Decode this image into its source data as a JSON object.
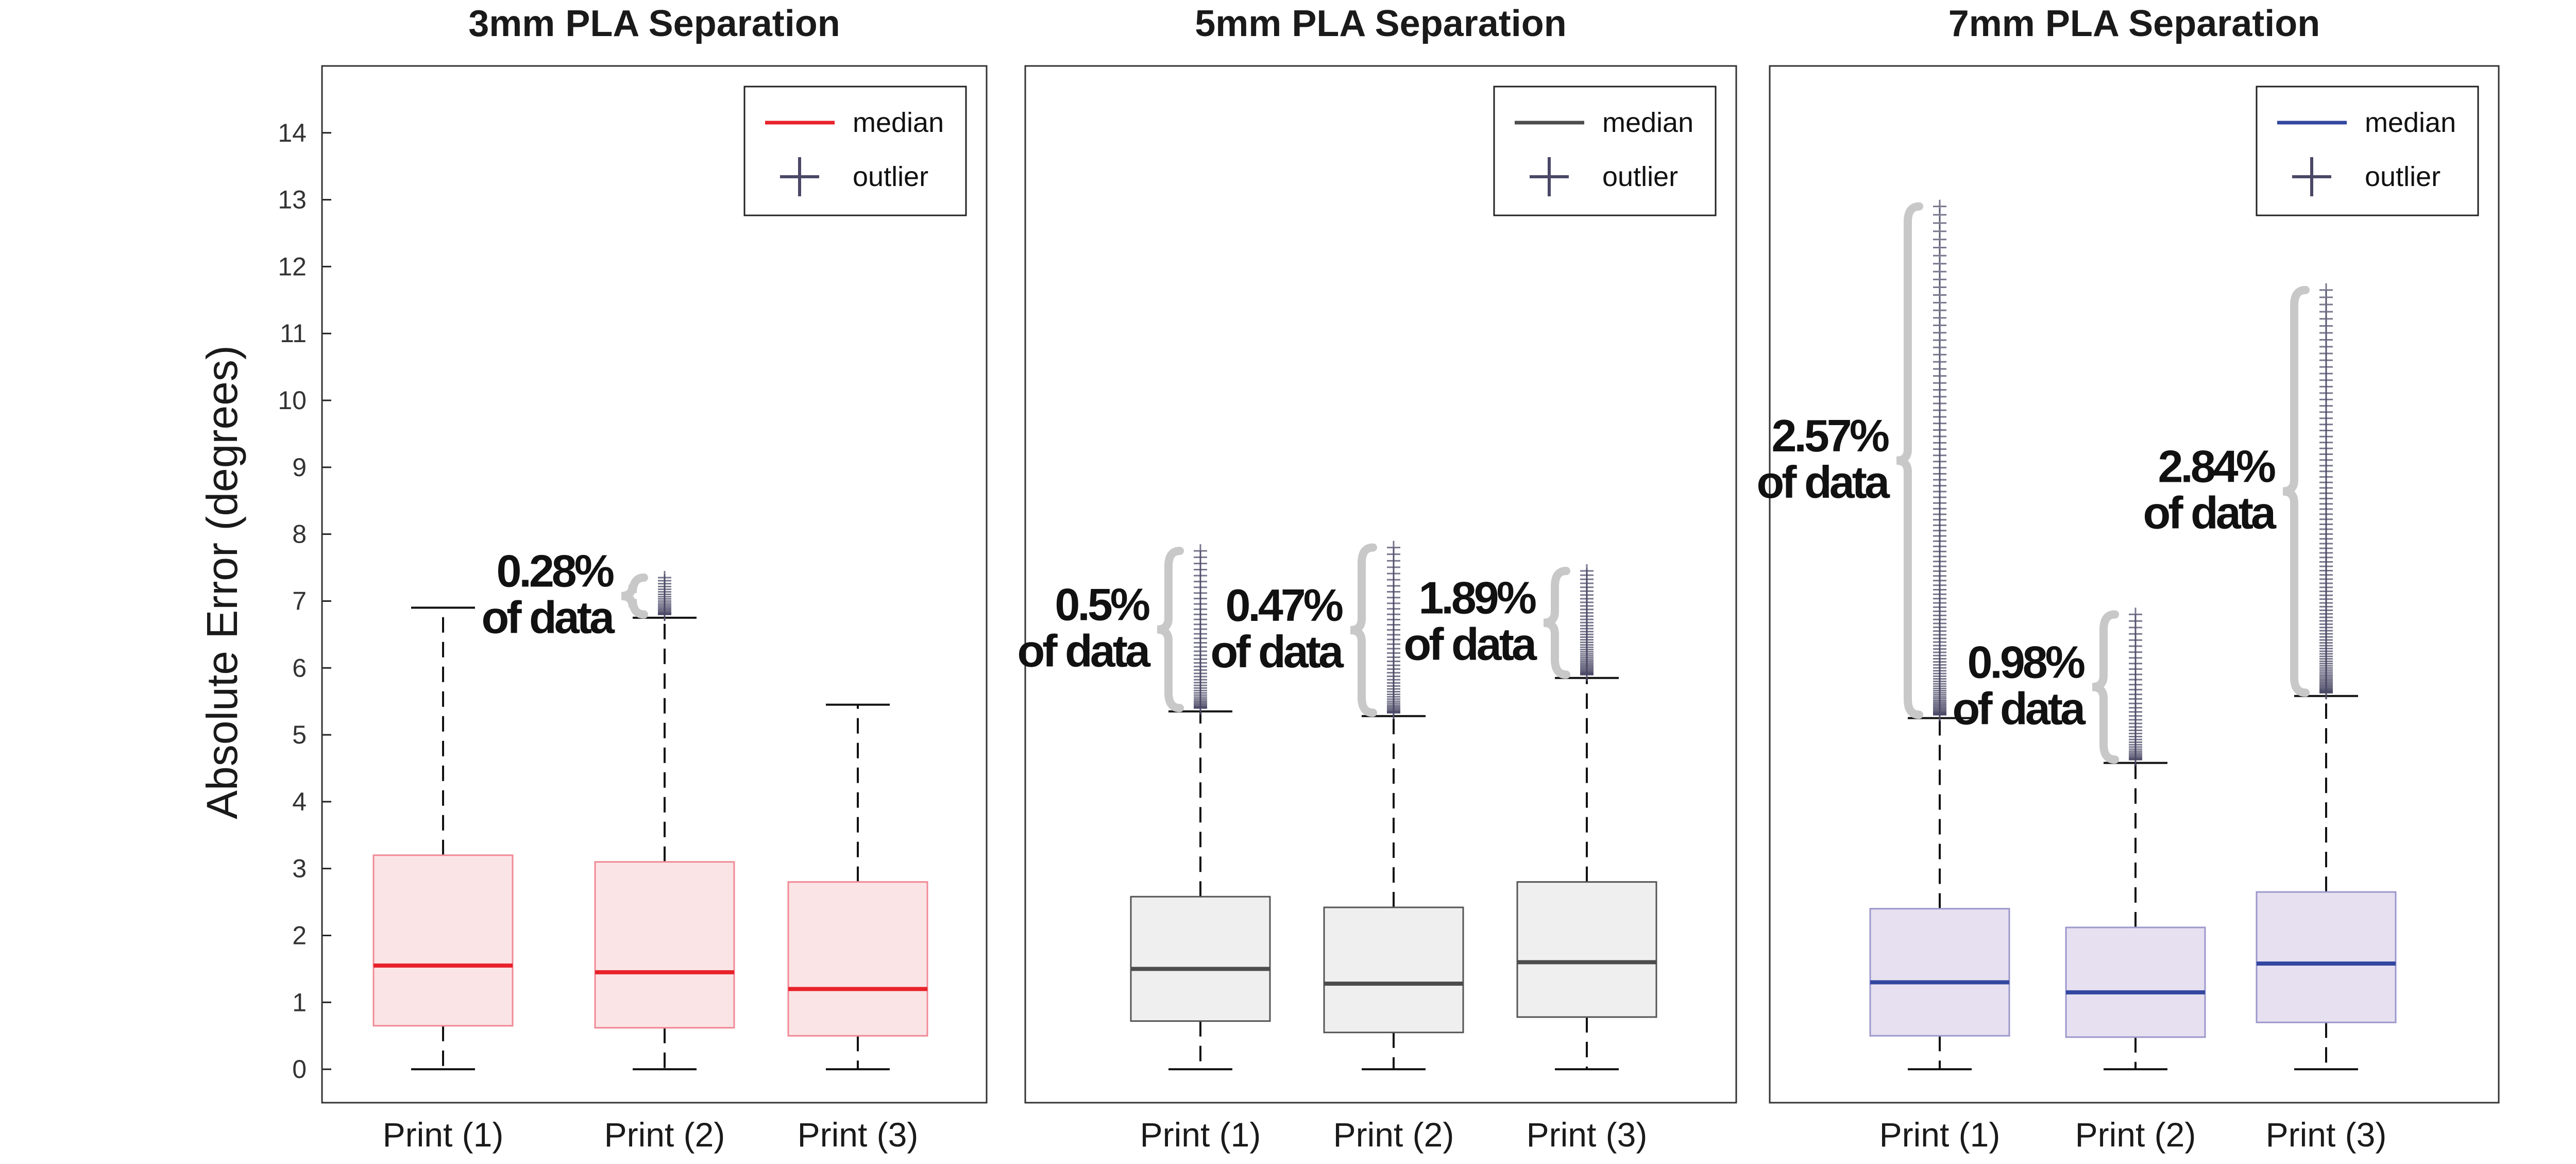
{
  "figure": {
    "ylabel": "Absolute Error (degrees)",
    "ylim": [
      -0.5,
      15
    ],
    "yticks": [
      0,
      1,
      2,
      3,
      4,
      5,
      6,
      7,
      8,
      9,
      10,
      11,
      12,
      13,
      14
    ],
    "legend_labels": [
      "median",
      "outlier"
    ]
  },
  "chart_data": [
    {
      "type": "box",
      "title": "3mm PLA Separation",
      "categories": [
        "Print (1)",
        "Print (2)",
        "Print (3)"
      ],
      "median_color": "#e8222a",
      "box_fill": "#fbe4e6",
      "box_edge": "#f08a96",
      "legend_placement": "top-right",
      "boxes": [
        {
          "category": "Print (1)",
          "min": 0,
          "q1": 0.65,
          "median": 1.55,
          "q3": 3.2,
          "max": 6.9,
          "outlier_max": null,
          "outlier_count": 0,
          "annotation": null
        },
        {
          "category": "Print (2)",
          "min": 0,
          "q1": 0.62,
          "median": 1.45,
          "q3": 3.1,
          "max": 6.75,
          "outlier_max": 7.35,
          "outlier_count": 22,
          "annotation": {
            "pct": "0.28%",
            "text": "of data"
          }
        },
        {
          "category": "Print (3)",
          "min": 0,
          "q1": 0.5,
          "median": 1.2,
          "q3": 2.8,
          "max": 5.45,
          "outlier_max": null,
          "outlier_count": 0,
          "annotation": null
        }
      ]
    },
    {
      "type": "box",
      "title": "5mm PLA Separation",
      "categories": [
        "Print (1)",
        "Print (2)",
        "Print (3)"
      ],
      "median_color": "#4d4d4d",
      "box_fill": "#efefef",
      "box_edge": "#555555",
      "legend_placement": "top-right",
      "boxes": [
        {
          "category": "Print (1)",
          "min": 0,
          "q1": 0.72,
          "median": 1.5,
          "q3": 2.58,
          "max": 5.35,
          "outlier_max": 7.75,
          "outlier_count": 45,
          "annotation": {
            "pct": "0.5%",
            "text": "of data"
          }
        },
        {
          "category": "Print (2)",
          "min": 0,
          "q1": 0.55,
          "median": 1.28,
          "q3": 2.42,
          "max": 5.28,
          "outlier_max": 7.8,
          "outlier_count": 45,
          "annotation": {
            "pct": "0.47%",
            "text": "of data"
          }
        },
        {
          "category": "Print (3)",
          "min": 0,
          "q1": 0.78,
          "median": 1.6,
          "q3": 2.8,
          "max": 5.85,
          "outlier_max": 7.45,
          "outlier_count": 45,
          "annotation": {
            "pct": "1.89%",
            "text": "of data"
          }
        }
      ]
    },
    {
      "type": "box",
      "title": "7mm PLA Separation",
      "categories": [
        "Print (1)",
        "Print (2)",
        "Print (3)"
      ],
      "median_color": "#3347a0",
      "box_fill": "#e6e0f0",
      "box_edge": "#9c98cc",
      "legend_placement": "top-right",
      "boxes": [
        {
          "category": "Print (1)",
          "min": 0,
          "q1": 0.5,
          "median": 1.3,
          "q3": 2.4,
          "max": 5.25,
          "outlier_max": 12.9,
          "outlier_count": 110,
          "annotation": {
            "pct": "2.57%",
            "text": "of data"
          }
        },
        {
          "category": "Print (2)",
          "min": 0,
          "q1": 0.48,
          "median": 1.15,
          "q3": 2.12,
          "max": 4.58,
          "outlier_max": 6.8,
          "outlier_count": 40,
          "annotation": {
            "pct": "0.98%",
            "text": "of data"
          }
        },
        {
          "category": "Print (3)",
          "min": 0,
          "q1": 0.7,
          "median": 1.58,
          "q3": 2.65,
          "max": 5.58,
          "outlier_max": 11.65,
          "outlier_count": 100,
          "annotation": {
            "pct": "2.84%",
            "text": "of data"
          }
        }
      ]
    }
  ]
}
